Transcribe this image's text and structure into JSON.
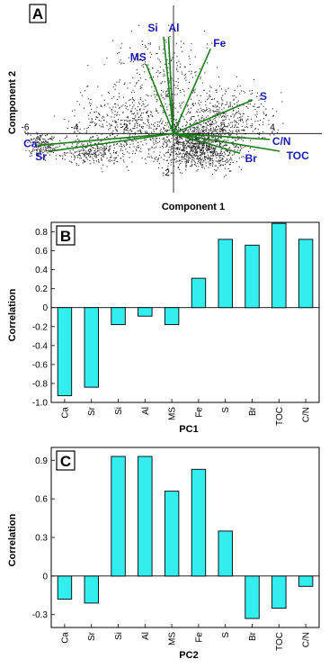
{
  "chart_data": [
    {
      "type": "scatter",
      "panel": "A",
      "xlabel": "Component 1",
      "ylabel": "Component 2",
      "xlim": [
        -6,
        6
      ],
      "ylim": [
        -3,
        6.5
      ],
      "x_ticks": [
        -6,
        -4,
        -2,
        0,
        2,
        4
      ],
      "y_ticks": [
        -2,
        2
      ],
      "vectors": [
        {
          "name": "Si",
          "x": -0.4,
          "y": 4.9
        },
        {
          "name": "Al",
          "x": -0.2,
          "y": 4.9
        },
        {
          "name": "MS",
          "x": -1.1,
          "y": 3.5
        },
        {
          "name": "Fe",
          "x": 1.5,
          "y": 4.3
        },
        {
          "name": "S",
          "x": 3.2,
          "y": 1.7
        },
        {
          "name": "C/N",
          "x": 3.9,
          "y": -0.3
        },
        {
          "name": "TOC",
          "x": 4.3,
          "y": -0.9
        },
        {
          "name": "Br",
          "x": 2.7,
          "y": -1.0
        },
        {
          "name": "Ca",
          "x": -5.5,
          "y": -0.6
        },
        {
          "name": "Sr",
          "x": -5.0,
          "y": -0.9
        }
      ],
      "clusters": [
        {
          "cx": 1.1,
          "cy": -0.6,
          "sx": 1.1,
          "sy": 0.85,
          "n": 1100
        },
        {
          "cx": -5.3,
          "cy": -0.55,
          "sx": 0.45,
          "sy": 0.45,
          "n": 200
        },
        {
          "cx": -3.3,
          "cy": -0.9,
          "sx": 0.9,
          "sy": 0.45,
          "n": 240
        },
        {
          "cx": -1.5,
          "cy": 0.4,
          "sx": 1.8,
          "sy": 1.3,
          "n": 620
        },
        {
          "cx": 2.1,
          "cy": 1.0,
          "sx": 1.4,
          "sy": 1.0,
          "n": 380
        },
        {
          "cx": -0.5,
          "cy": 3.3,
          "sx": 1.6,
          "sy": 1.3,
          "n": 220
        }
      ],
      "line_color": "#1a7d1a",
      "label_color": "#1a1ab4"
    },
    {
      "type": "bar",
      "panel": "B",
      "categories": [
        "Ca",
        "Sr",
        "Si",
        "Al",
        "MS",
        "Fe",
        "S",
        "Br",
        "TOC",
        "C/N"
      ],
      "values": [
        -0.93,
        -0.84,
        -0.18,
        -0.09,
        -0.18,
        0.31,
        0.72,
        0.66,
        0.89,
        0.72
      ],
      "xlabel": "PC1",
      "ylabel": "Correlation",
      "ylim": [
        -1.0,
        0.9
      ],
      "y_ticks": [
        0.8,
        0.6,
        0.4,
        0.2,
        0,
        -0.2,
        -0.4,
        -0.6,
        -0.8,
        -1.0
      ],
      "y_tick_labels": [
        "0.8",
        "0.6",
        "0.4",
        "0.2",
        "0",
        "-0.2",
        "-0.4",
        "-0.6",
        "-0.8",
        "-1.0"
      ],
      "bar_color": "#33eeee"
    },
    {
      "type": "bar",
      "panel": "C",
      "categories": [
        "Ca",
        "Sr",
        "Si",
        "Al",
        "MS",
        "Fe",
        "S",
        "Br",
        "TOC",
        "C/N"
      ],
      "values": [
        -0.18,
        -0.21,
        0.93,
        0.93,
        0.66,
        0.83,
        0.35,
        -0.33,
        -0.25,
        -0.08
      ],
      "xlabel": "PC2",
      "ylabel": "Correlation",
      "ylim": [
        -0.4,
        1.0
      ],
      "y_ticks": [
        0.9,
        0.6,
        0.3,
        0,
        -0.3
      ],
      "y_tick_labels": [
        "0.9",
        "0.6",
        "0.3",
        "0",
        "-0.3"
      ],
      "bar_color": "#33eeee"
    }
  ]
}
